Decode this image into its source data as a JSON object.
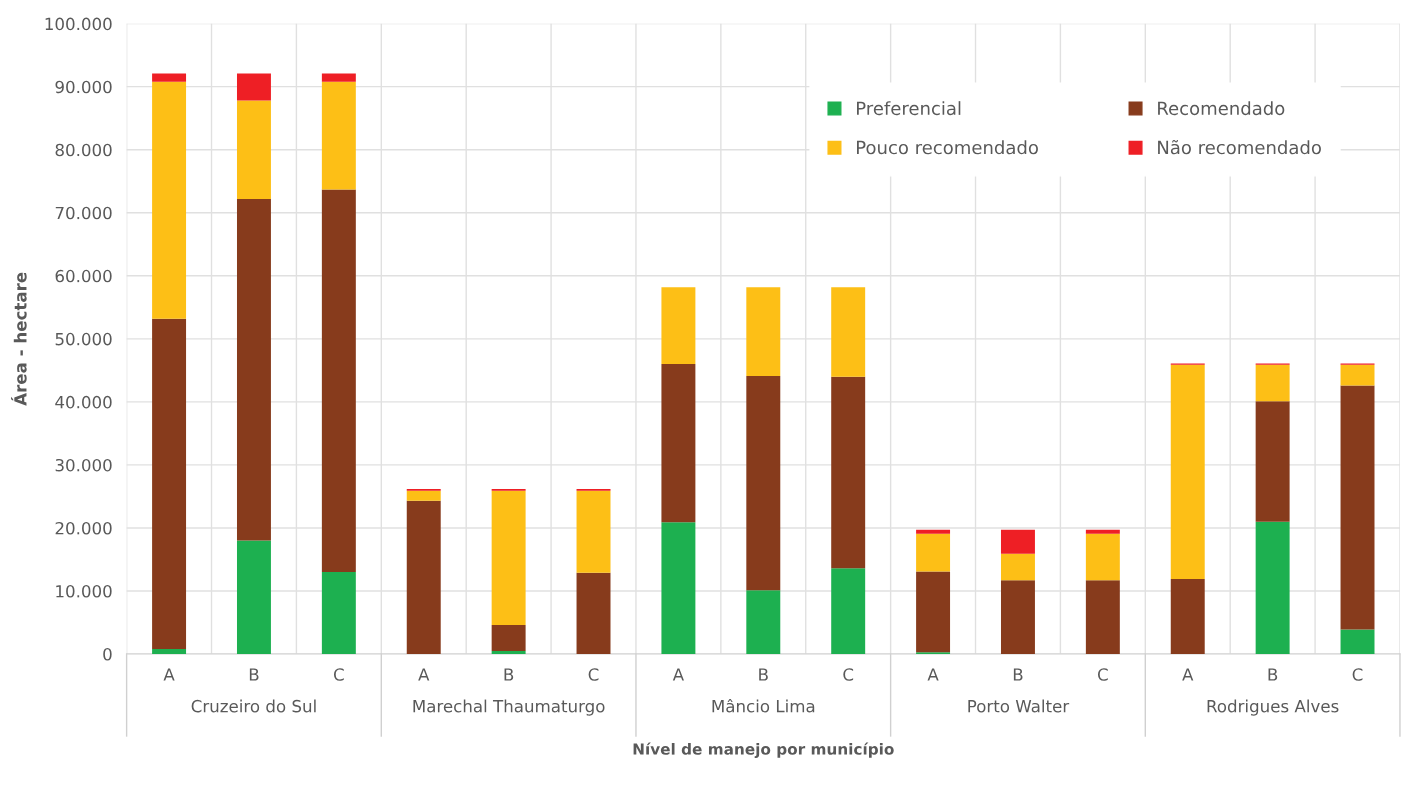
{
  "chart_data": {
    "type": "bar",
    "stacked": true,
    "xlabel": "Nível de manejo por município",
    "ylabel": "Área - hectare",
    "categories": [
      "A",
      "B",
      "C",
      "A",
      "B",
      "C",
      "A",
      "B",
      "C",
      "A",
      "B",
      "C",
      "A",
      "B",
      "C"
    ],
    "annotations": [
      "Cruzeiro do Sul",
      "Marechal Thaumaturgo",
      "Mâncio Lima",
      "Porto Walter",
      "Rodrigues Alves"
    ],
    "series": [
      {
        "name": "Preferencial",
        "color": "#1db050",
        "values": [
          800,
          18000,
          13000,
          0,
          500,
          0,
          20900,
          10100,
          13600,
          300,
          0,
          0,
          0,
          21000,
          3900
        ]
      },
      {
        "name": "Recomendado",
        "color": "#873b1c",
        "values": [
          52400,
          54200,
          60700,
          24300,
          4100,
          12900,
          25100,
          34000,
          30400,
          12800,
          11700,
          11700,
          11900,
          19100,
          38700
        ]
      },
      {
        "name": "Pouco recomendado",
        "color": "#fdbf16",
        "values": [
          37600,
          15600,
          17100,
          1600,
          21300,
          13000,
          12200,
          14100,
          14200,
          6000,
          4200,
          7400,
          34000,
          5800,
          3300
        ]
      },
      {
        "name": "Não recomendado",
        "color": "#ee1f25",
        "values": [
          1300,
          4300,
          1300,
          300,
          300,
          300,
          0,
          0,
          0,
          600,
          3800,
          600,
          200,
          200,
          200
        ]
      }
    ],
    "ylim": [
      0,
      100000
    ],
    "yticks": [
      0,
      {
        "value": 10000,
        "label": "10.000"
      },
      {
        "value": 20000,
        "label": "20.000"
      },
      {
        "value": 30000,
        "label": "30.000"
      },
      {
        "value": 40000,
        "label": "40.000"
      },
      {
        "value": 50000,
        "label": "50.000"
      },
      {
        "value": 60000,
        "label": "60.000"
      },
      {
        "value": 70000,
        "label": "70.000"
      },
      {
        "value": 80000,
        "label": "80.000"
      },
      {
        "value": 90000,
        "label": "90.000"
      },
      {
        "value": 100000,
        "label": "100.000"
      }
    ],
    "grid": true,
    "legend": "top right"
  }
}
